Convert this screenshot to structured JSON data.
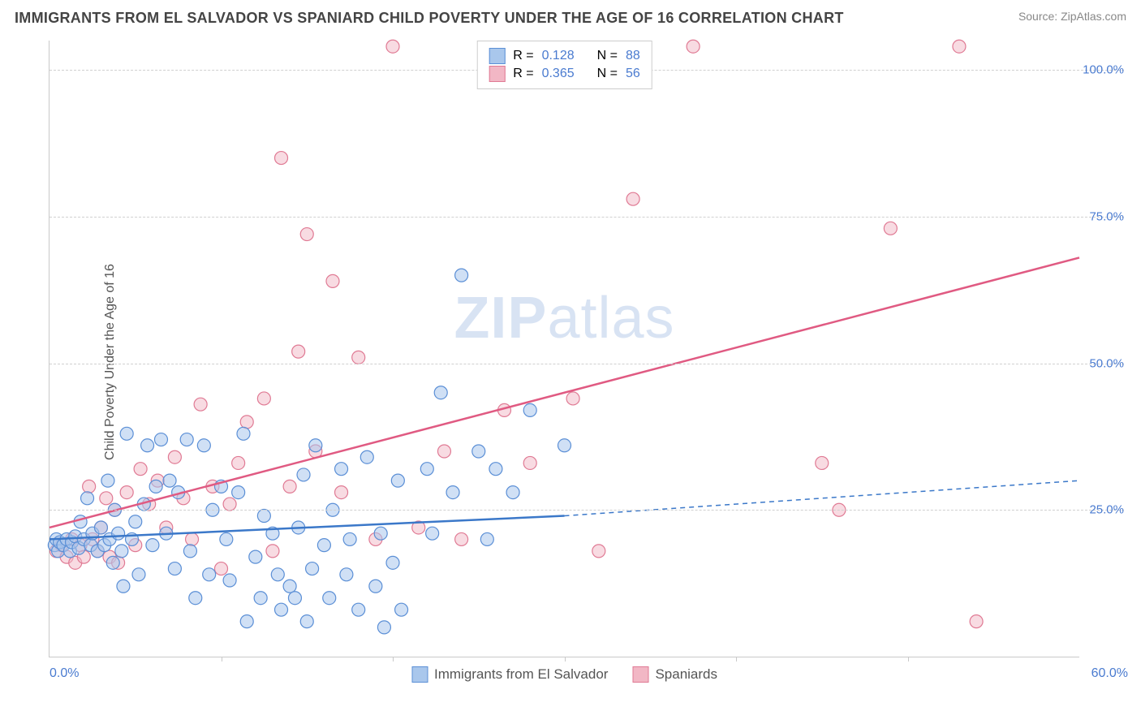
{
  "header": {
    "title": "IMMIGRANTS FROM EL SALVADOR VS SPANIARD CHILD POVERTY UNDER THE AGE OF 16 CORRELATION CHART",
    "source": "Source: ZipAtlas.com"
  },
  "chart": {
    "type": "scatter",
    "ylabel": "Child Poverty Under the Age of 16",
    "xlim": [
      0,
      60
    ],
    "ylim": [
      0,
      105
    ],
    "ytick_labels": [
      "25.0%",
      "50.0%",
      "75.0%",
      "100.0%"
    ],
    "ytick_values": [
      25,
      50,
      75,
      100
    ],
    "xlabel_min": "0.0%",
    "xlabel_max": "60.0%",
    "xtick_values": [
      10,
      20,
      30,
      40,
      50
    ],
    "background_color": "#ffffff",
    "grid_color": "#d0d0d0",
    "axis_color": "#c9c9c9",
    "watermark": "ZIPatlas",
    "series": [
      {
        "name": "Immigrants from El Salvador",
        "color_fill": "#a9c7ec",
        "color_stroke": "#5b8fd6",
        "marker_radius": 8,
        "fill_opacity": 0.55,
        "R": "0.128",
        "N": "88",
        "trend": {
          "x1": 0,
          "y1": 20,
          "x2": 30,
          "y2": 24,
          "x2_ext": 60,
          "y2_ext": 30,
          "stroke": "#3b78c9",
          "stroke_width": 2.5
        },
        "points": [
          [
            0.3,
            19
          ],
          [
            0.4,
            20
          ],
          [
            0.5,
            18
          ],
          [
            0.6,
            19.5
          ],
          [
            0.8,
            19
          ],
          [
            1.0,
            20
          ],
          [
            1.2,
            18
          ],
          [
            1.3,
            19.5
          ],
          [
            1.5,
            20.5
          ],
          [
            1.7,
            18.5
          ],
          [
            1.8,
            23
          ],
          [
            2.0,
            20
          ],
          [
            2.2,
            27
          ],
          [
            2.4,
            19
          ],
          [
            2.5,
            21
          ],
          [
            2.8,
            18
          ],
          [
            3.0,
            22
          ],
          [
            3.2,
            19
          ],
          [
            3.4,
            30
          ],
          [
            3.5,
            20
          ],
          [
            3.7,
            16
          ],
          [
            3.8,
            25
          ],
          [
            4.0,
            21
          ],
          [
            4.2,
            18
          ],
          [
            4.3,
            12
          ],
          [
            4.5,
            38
          ],
          [
            4.8,
            20
          ],
          [
            5.0,
            23
          ],
          [
            5.2,
            14
          ],
          [
            5.5,
            26
          ],
          [
            5.7,
            36
          ],
          [
            6.0,
            19
          ],
          [
            6.2,
            29
          ],
          [
            6.5,
            37
          ],
          [
            6.8,
            21
          ],
          [
            7.0,
            30
          ],
          [
            7.3,
            15
          ],
          [
            7.5,
            28
          ],
          [
            8.0,
            37
          ],
          [
            8.2,
            18
          ],
          [
            8.5,
            10
          ],
          [
            9.0,
            36
          ],
          [
            9.3,
            14
          ],
          [
            9.5,
            25
          ],
          [
            10.0,
            29
          ],
          [
            10.3,
            20
          ],
          [
            10.5,
            13
          ],
          [
            11.0,
            28
          ],
          [
            11.3,
            38
          ],
          [
            11.5,
            6
          ],
          [
            12.0,
            17
          ],
          [
            12.3,
            10
          ],
          [
            12.5,
            24
          ],
          [
            13.0,
            21
          ],
          [
            13.3,
            14
          ],
          [
            13.5,
            8
          ],
          [
            14.0,
            12
          ],
          [
            14.3,
            10
          ],
          [
            14.5,
            22
          ],
          [
            14.8,
            31
          ],
          [
            15.0,
            6
          ],
          [
            15.3,
            15
          ],
          [
            15.5,
            36
          ],
          [
            16.0,
            19
          ],
          [
            16.3,
            10
          ],
          [
            16.5,
            25
          ],
          [
            17.0,
            32
          ],
          [
            17.3,
            14
          ],
          [
            17.5,
            20
          ],
          [
            18.0,
            8
          ],
          [
            18.5,
            34
          ],
          [
            19.0,
            12
          ],
          [
            19.3,
            21
          ],
          [
            19.5,
            5
          ],
          [
            20.0,
            16
          ],
          [
            20.3,
            30
          ],
          [
            20.5,
            8
          ],
          [
            22.0,
            32
          ],
          [
            22.3,
            21
          ],
          [
            22.8,
            45
          ],
          [
            23.5,
            28
          ],
          [
            24.0,
            65
          ],
          [
            25.0,
            35
          ],
          [
            25.5,
            20
          ],
          [
            26.0,
            32
          ],
          [
            27.0,
            28
          ],
          [
            28.0,
            42
          ],
          [
            30.0,
            36
          ]
        ]
      },
      {
        "name": "Spaniards",
        "color_fill": "#f2b7c5",
        "color_stroke": "#e07a94",
        "marker_radius": 8,
        "fill_opacity": 0.5,
        "R": "0.365",
        "N": "56",
        "trend": {
          "x1": 0,
          "y1": 22,
          "x2": 60,
          "y2": 68,
          "stroke": "#e05a82",
          "stroke_width": 2.5
        },
        "points": [
          [
            0.4,
            18
          ],
          [
            0.7,
            19
          ],
          [
            1.0,
            17
          ],
          [
            1.3,
            20
          ],
          [
            1.5,
            16
          ],
          [
            1.8,
            19
          ],
          [
            2.0,
            17
          ],
          [
            2.3,
            29
          ],
          [
            2.5,
            20
          ],
          [
            2.8,
            18
          ],
          [
            3.0,
            22
          ],
          [
            3.3,
            27
          ],
          [
            3.5,
            17
          ],
          [
            3.8,
            25
          ],
          [
            4.0,
            16
          ],
          [
            4.5,
            28
          ],
          [
            5.0,
            19
          ],
          [
            5.3,
            32
          ],
          [
            5.8,
            26
          ],
          [
            6.3,
            30
          ],
          [
            6.8,
            22
          ],
          [
            7.3,
            34
          ],
          [
            7.8,
            27
          ],
          [
            8.3,
            20
          ],
          [
            8.8,
            43
          ],
          [
            9.5,
            29
          ],
          [
            10.0,
            15
          ],
          [
            10.5,
            26
          ],
          [
            11.0,
            33
          ],
          [
            11.5,
            40
          ],
          [
            12.5,
            44
          ],
          [
            13.0,
            18
          ],
          [
            13.5,
            85
          ],
          [
            14.0,
            29
          ],
          [
            14.5,
            52
          ],
          [
            15.0,
            72
          ],
          [
            15.5,
            35
          ],
          [
            16.5,
            64
          ],
          [
            17.0,
            28
          ],
          [
            18.0,
            51
          ],
          [
            19.0,
            20
          ],
          [
            20.0,
            104
          ],
          [
            21.5,
            22
          ],
          [
            23.0,
            35
          ],
          [
            24.0,
            20
          ],
          [
            26.5,
            42
          ],
          [
            28.0,
            33
          ],
          [
            30.5,
            44
          ],
          [
            32.0,
            18
          ],
          [
            34.0,
            78
          ],
          [
            37.5,
            104
          ],
          [
            45.0,
            33
          ],
          [
            46.0,
            25
          ],
          [
            49.0,
            73
          ],
          [
            53.0,
            104
          ],
          [
            54.0,
            6
          ]
        ]
      }
    ],
    "legend_top": {
      "R_label": "R =",
      "N_label": "N =",
      "text_color": "#555",
      "value_color": "#4a7bd0"
    },
    "legend_bottom": {
      "text_color": "#555"
    }
  }
}
